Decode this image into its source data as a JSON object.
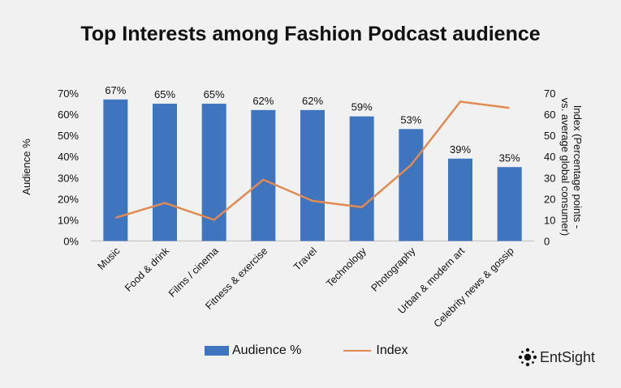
{
  "chart_data": {
    "type": "bar",
    "title": "Top Interests among Fashion Podcast audience",
    "categories": [
      "Music",
      "Food & drink",
      "Films / cinema",
      "Fitness & exercise",
      "Travel",
      "Technology",
      "Photography",
      "Urban & modern art",
      "Celebrity news & gossip"
    ],
    "series": [
      {
        "name": "Audience %",
        "type": "bar",
        "axis": "left",
        "values": [
          67,
          65,
          65,
          62,
          62,
          59,
          53,
          39,
          35
        ],
        "labels": [
          "67%",
          "65%",
          "65%",
          "62%",
          "62%",
          "59%",
          "53%",
          "39%",
          "35%"
        ],
        "color": "#3f74bf"
      },
      {
        "name": "Index",
        "type": "line",
        "axis": "right",
        "values": [
          11,
          18,
          10,
          29,
          19,
          16,
          36,
          66,
          63
        ],
        "color": "#e18a52"
      }
    ],
    "ylabel": "Audience %",
    "y2label": "Index (Percentage points -\nvs. average global consumer)",
    "ylim": [
      0,
      70
    ],
    "y2lim": [
      0,
      70
    ],
    "yticks": [
      "0%",
      "10%",
      "20%",
      "30%",
      "40%",
      "50%",
      "60%",
      "70%"
    ],
    "y2ticks": [
      "0",
      "10",
      "20",
      "30",
      "40",
      "50",
      "60",
      "70"
    ],
    "grid": false,
    "legend": "bottom"
  },
  "legend": {
    "bar_label": "Audience %",
    "line_label": "Index"
  },
  "brand": {
    "name": "EntSight"
  }
}
